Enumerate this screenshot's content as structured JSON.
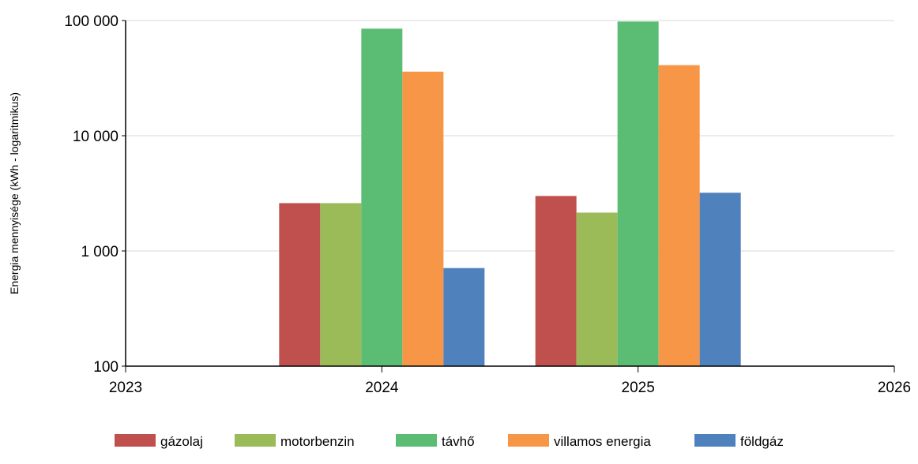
{
  "chart_data": {
    "type": "bar",
    "ylabel": "Energia mennyisége (kWh - logaritmikus)",
    "yscale": "log",
    "ylim": [
      100,
      100000
    ],
    "yticks": [
      100,
      1000,
      10000,
      100000
    ],
    "ytick_labels": [
      "100",
      "1 000",
      "10 000",
      "100 000"
    ],
    "xlim": [
      2023,
      2026
    ],
    "xticks": [
      2023,
      2024,
      2025,
      2026
    ],
    "xtick_labels": [
      "2023",
      "2024",
      "2025",
      "2026"
    ],
    "grid": "horizontal",
    "legend_position": "bottom",
    "categories": [
      "2024",
      "2025"
    ],
    "series": [
      {
        "name": "gázolaj",
        "color": "#c0504d",
        "values": [
          2600,
          3000
        ]
      },
      {
        "name": "motorbenzin",
        "color": "#9bbb59",
        "values": [
          2600,
          2150
        ]
      },
      {
        "name": "távhő",
        "color": "#5bbd73",
        "values": [
          85000,
          98000
        ]
      },
      {
        "name": "villamos energia",
        "color": "#f79646",
        "values": [
          36000,
          41000
        ]
      },
      {
        "name": "földgáz",
        "color": "#4f81bd",
        "values": [
          710,
          3200
        ]
      }
    ]
  }
}
